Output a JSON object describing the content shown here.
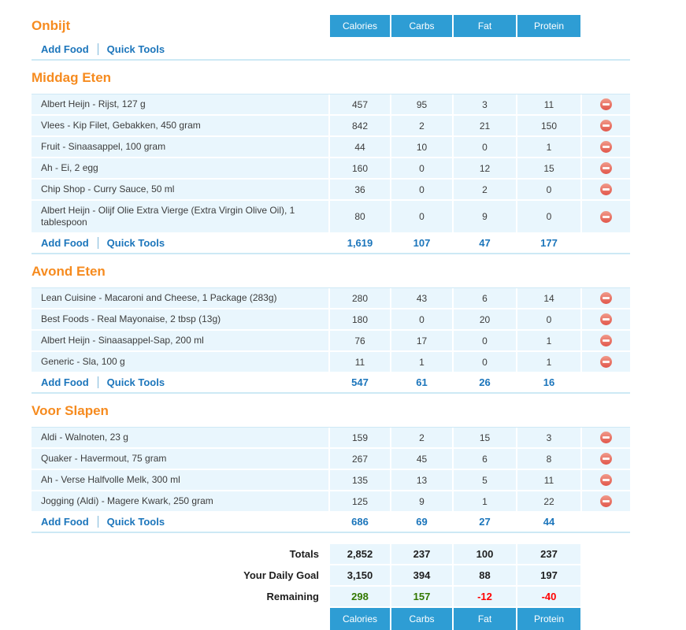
{
  "columns": [
    "Calories",
    "Carbs",
    "Fat",
    "Protein"
  ],
  "actions": {
    "add_food": "Add Food",
    "quick_tools": "Quick Tools"
  },
  "meals": [
    {
      "title": "Onbijt",
      "show_column_headers": true,
      "items": [],
      "subtotals": [
        "",
        "",
        "",
        ""
      ]
    },
    {
      "title": "Middag Eten",
      "show_column_headers": false,
      "items": [
        {
          "name": "Albert Heijn - Rijst, 127 g",
          "values": [
            "457",
            "95",
            "3",
            "11"
          ]
        },
        {
          "name": "Vlees - Kip Filet, Gebakken, 450 gram",
          "values": [
            "842",
            "2",
            "21",
            "150"
          ]
        },
        {
          "name": "Fruit - Sinaasappel, 100 gram",
          "values": [
            "44",
            "10",
            "0",
            "1"
          ]
        },
        {
          "name": "Ah - Ei, 2 egg",
          "values": [
            "160",
            "0",
            "12",
            "15"
          ]
        },
        {
          "name": "Chip Shop - Curry Sauce, 50 ml",
          "values": [
            "36",
            "0",
            "2",
            "0"
          ]
        },
        {
          "name": "Albert Heijn - Olijf Olie Extra Vierge (Extra Virgin Olive Oil), 1 tablespoon",
          "values": [
            "80",
            "0",
            "9",
            "0"
          ]
        }
      ],
      "subtotals": [
        "1,619",
        "107",
        "47",
        "177"
      ]
    },
    {
      "title": "Avond Eten",
      "show_column_headers": false,
      "items": [
        {
          "name": "Lean Cuisine - Macaroni and Cheese, 1 Package (283g)",
          "values": [
            "280",
            "43",
            "6",
            "14"
          ]
        },
        {
          "name": "Best Foods - Real Mayonaise, 2 tbsp (13g)",
          "values": [
            "180",
            "0",
            "20",
            "0"
          ]
        },
        {
          "name": "Albert Heijn - Sinaasappel-Sap, 200 ml",
          "values": [
            "76",
            "17",
            "0",
            "1"
          ]
        },
        {
          "name": "Generic - Sla, 100 g",
          "values": [
            "11",
            "1",
            "0",
            "1"
          ]
        }
      ],
      "subtotals": [
        "547",
        "61",
        "26",
        "16"
      ]
    },
    {
      "title": "Voor Slapen",
      "show_column_headers": false,
      "items": [
        {
          "name": "Aldi - Walnoten, 23 g",
          "values": [
            "159",
            "2",
            "15",
            "3"
          ]
        },
        {
          "name": "Quaker - Havermout, 75 gram",
          "values": [
            "267",
            "45",
            "6",
            "8"
          ]
        },
        {
          "name": "Ah - Verse Halfvolle Melk, 300 ml",
          "values": [
            "135",
            "13",
            "5",
            "11"
          ]
        },
        {
          "name": "Jogging (Aldi) - Magere Kwark, 250 gram",
          "values": [
            "125",
            "9",
            "1",
            "22"
          ]
        }
      ],
      "subtotals": [
        "686",
        "69",
        "27",
        "44"
      ]
    }
  ],
  "summary": {
    "rows": [
      {
        "label": "Totals",
        "values": [
          "2,852",
          "237",
          "100",
          "237"
        ],
        "value_states": [
          "normal",
          "normal",
          "normal",
          "normal"
        ]
      },
      {
        "label": "Your Daily Goal",
        "values": [
          "3,150",
          "394",
          "88",
          "197"
        ],
        "value_states": [
          "normal",
          "normal",
          "normal",
          "normal"
        ]
      },
      {
        "label": "Remaining",
        "values": [
          "298",
          "157",
          "-12",
          "-40"
        ],
        "value_states": [
          "positive",
          "positive",
          "negative",
          "negative"
        ]
      }
    ]
  },
  "colors": {
    "accent_orange": "#F68B1F",
    "header_blue": "#2E9DD4",
    "link_blue": "#1B75BB",
    "row_bg": "#E9F6FD",
    "separator": "#CDE9F5",
    "positive_green": "#327800",
    "negative_red": "#FF0000",
    "delete_red": "#E2574B"
  }
}
